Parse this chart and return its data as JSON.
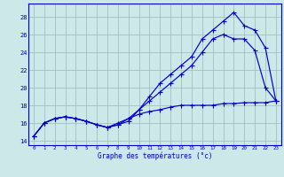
{
  "xlabel": "Graphe des températures (°c)",
  "bg_color": "#cce8e8",
  "grid_color": "#99bbbb",
  "line_color": "#0000cc",
  "hours": [
    0,
    1,
    2,
    3,
    4,
    5,
    6,
    7,
    8,
    9,
    10,
    11,
    12,
    13,
    14,
    15,
    16,
    17,
    18,
    19,
    20,
    21,
    22,
    23
  ],
  "line_top": [
    14.5,
    16.0,
    16.5,
    16.7,
    16.5,
    16.2,
    15.8,
    15.5,
    15.8,
    16.2,
    17.5,
    19.0,
    20.5,
    21.5,
    22.5,
    23.5,
    25.5,
    26.5,
    27.5,
    28.5,
    27.0,
    26.5,
    24.5,
    18.5
  ],
  "line_mid": [
    14.5,
    16.0,
    16.5,
    16.7,
    16.5,
    16.2,
    15.8,
    15.5,
    15.8,
    16.5,
    17.5,
    18.5,
    19.5,
    20.5,
    21.5,
    22.5,
    24.0,
    25.5,
    26.0,
    25.5,
    25.5,
    24.2,
    20.0,
    18.5
  ],
  "line_bot": [
    14.5,
    16.0,
    16.5,
    16.7,
    16.5,
    16.2,
    15.8,
    15.5,
    16.0,
    16.5,
    17.0,
    17.3,
    17.5,
    17.8,
    18.0,
    18.0,
    18.0,
    18.0,
    18.2,
    18.2,
    18.3,
    18.3,
    18.3,
    18.5
  ],
  "ylim": [
    13.5,
    29.5
  ],
  "yticks": [
    14,
    16,
    18,
    20,
    22,
    24,
    26,
    28
  ],
  "xticks": [
    0,
    1,
    2,
    3,
    4,
    5,
    6,
    7,
    8,
    9,
    10,
    11,
    12,
    13,
    14,
    15,
    16,
    17,
    18,
    19,
    20,
    21,
    22,
    23
  ]
}
